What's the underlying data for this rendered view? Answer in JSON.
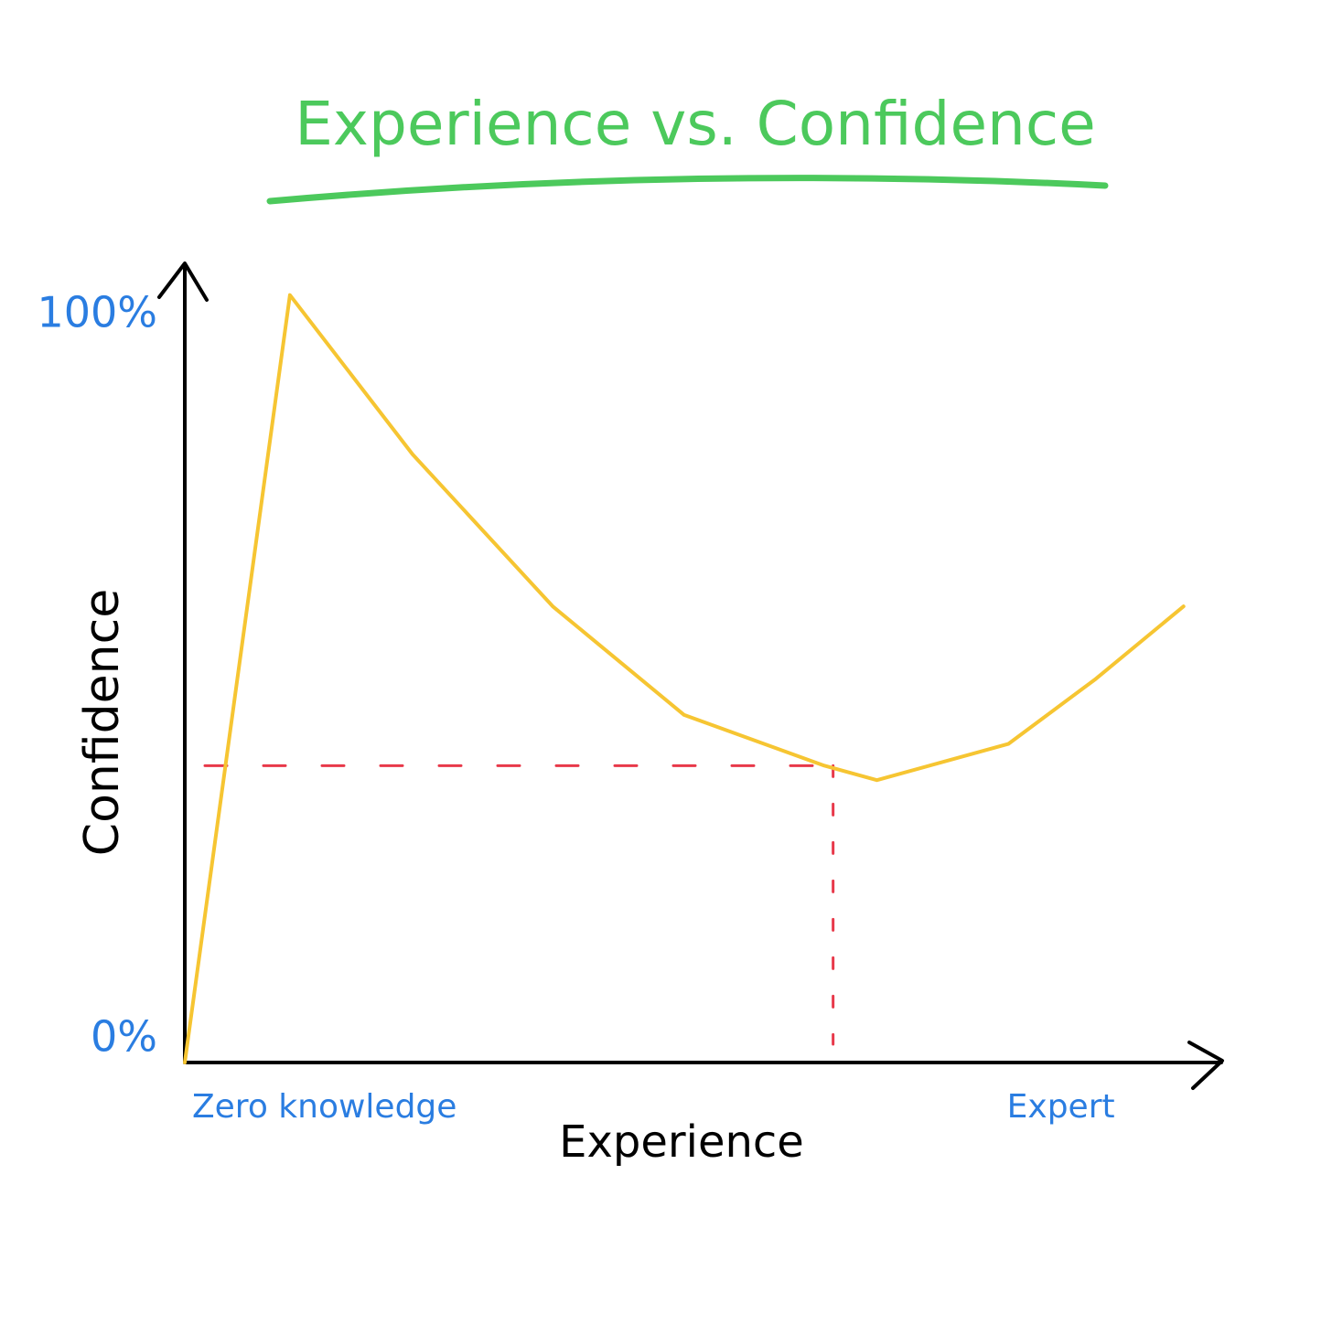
{
  "chart_data": {
    "type": "line",
    "title": "Experience vs. Confidence",
    "x_label": "Experience",
    "y_label": "Confidence",
    "xlim": [
      0,
      118
    ],
    "ylim": [
      0,
      110
    ],
    "xticks": [
      {
        "value": 0,
        "label": "Zero knowledge"
      },
      {
        "value": 100,
        "label": "Expert"
      }
    ],
    "yticks": [
      {
        "value": 0,
        "label": "0%"
      },
      {
        "value": 100,
        "label": "100%"
      }
    ],
    "series": [
      {
        "name": "Confidence",
        "color": "#f6c532",
        "x": [
          0,
          12,
          26,
          42,
          57,
          73,
          79,
          94,
          104,
          114
        ],
        "values": [
          0,
          106,
          84,
          63,
          48,
          41,
          39,
          44,
          53,
          63
        ]
      }
    ],
    "reference": {
      "x": 74,
      "y": 41,
      "color": "#e8394a"
    }
  }
}
